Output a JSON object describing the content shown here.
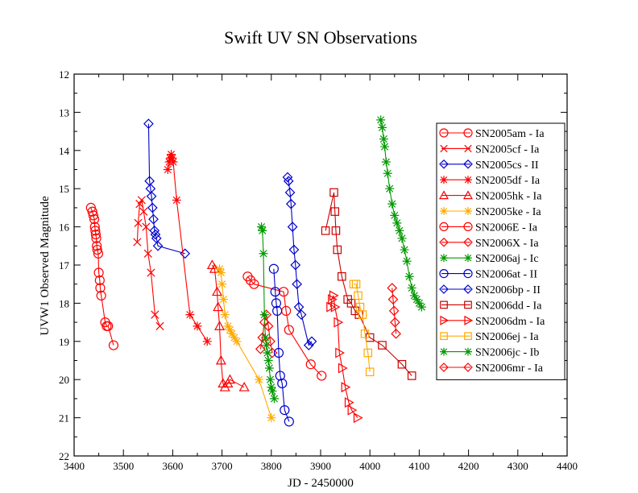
{
  "chart_data": {
    "type": "scatter",
    "title": "Swift UV SN Observations",
    "xlabel": "JD - 2450000",
    "ylabel": "UVW1 Observed Magnitude",
    "xlim": [
      3400,
      4400
    ],
    "ylim": [
      12,
      22
    ],
    "y_inverted": true,
    "xticks": [
      3400,
      3500,
      3600,
      3700,
      3800,
      3900,
      4000,
      4100,
      4200,
      4300,
      4400
    ],
    "yticks": [
      12,
      13,
      14,
      15,
      16,
      17,
      18,
      19,
      20,
      21,
      22
    ],
    "grid": false,
    "legend_position": "right",
    "series": [
      {
        "name": "SN2005am - Ia",
        "color": "#ff0000",
        "marker": "circle",
        "x": [
          3434,
          3437,
          3439,
          3441,
          3442,
          3443,
          3444,
          3445,
          3446,
          3447,
          3449,
          3450,
          3452,
          3453,
          3455,
          3463,
          3466,
          3469,
          3480
        ],
        "y": [
          15.5,
          15.6,
          15.7,
          15.8,
          16.0,
          16.1,
          16.2,
          16.3,
          16.5,
          16.6,
          16.7,
          17.2,
          17.4,
          17.6,
          17.8,
          18.5,
          18.6,
          18.6,
          19.1
        ]
      },
      {
        "name": "SN2005cf - Ia",
        "color": "#ff0000",
        "marker": "x",
        "x": [
          3528,
          3530,
          3533,
          3537,
          3541,
          3546,
          3550,
          3556,
          3564,
          3574
        ],
        "y": [
          16.4,
          15.9,
          15.4,
          15.3,
          15.6,
          16.0,
          16.7,
          17.2,
          18.3,
          18.6
        ]
      },
      {
        "name": "SN2005cs - II",
        "color": "#0000cc",
        "marker": "diamond",
        "x": [
          3551,
          3553,
          3555,
          3557,
          3559,
          3561,
          3563,
          3565,
          3567,
          3570,
          3625
        ],
        "y": [
          13.3,
          14.8,
          15.0,
          15.2,
          15.5,
          15.8,
          16.1,
          16.2,
          16.3,
          16.5,
          16.7
        ]
      },
      {
        "name": "SN2005df - Ia",
        "color": "#ff0000",
        "marker": "asterisk",
        "x": [
          3590,
          3593,
          3595,
          3597,
          3599,
          3601,
          3608,
          3635,
          3650,
          3670
        ],
        "y": [
          14.5,
          14.3,
          14.2,
          14.1,
          14.2,
          14.3,
          15.3,
          18.3,
          18.6,
          19.0
        ]
      },
      {
        "name": "SN2005hk - Ia",
        "color": "#ff0000",
        "marker": "triangle-up",
        "x": [
          3680,
          3685,
          3690,
          3692,
          3695,
          3698,
          3702,
          3706,
          3712,
          3716,
          3745
        ],
        "y": [
          17.0,
          17.1,
          17.7,
          18.1,
          18.6,
          19.5,
          20.1,
          20.2,
          20.1,
          20.0,
          20.2
        ]
      },
      {
        "name": "SN2005ke - Ia",
        "color": "#ffaa00",
        "marker": "asterisk",
        "x": [
          3695,
          3698,
          3700,
          3703,
          3706,
          3712,
          3716,
          3720,
          3725,
          3730,
          3775,
          3800
        ],
        "y": [
          17.1,
          17.2,
          17.5,
          17.9,
          18.3,
          18.6,
          18.7,
          18.8,
          18.9,
          19.0,
          20.0,
          21.0
        ]
      },
      {
        "name": "SN2006E - Ia",
        "color": "#ff0000",
        "marker": "circle",
        "x": [
          3752,
          3758,
          3765,
          3825,
          3830,
          3836,
          3880,
          3902
        ],
        "y": [
          17.3,
          17.4,
          17.5,
          17.7,
          18.2,
          18.7,
          19.6,
          19.9
        ]
      },
      {
        "name": "SN2006X - Ia",
        "color": "#ff0000",
        "marker": "diamond",
        "x": [
          3778,
          3782,
          3786,
          3790,
          3794,
          3798,
          3802
        ],
        "y": [
          19.2,
          18.9,
          18.5,
          18.3,
          18.6,
          19.0,
          19.3
        ]
      },
      {
        "name": "SN2006aj - Ic",
        "color": "#009900",
        "marker": "asterisk",
        "x": [
          3780,
          3782,
          3784,
          3786,
          3788,
          3790,
          3792,
          3794,
          3796,
          3798,
          3800,
          3802,
          3806
        ],
        "y": [
          16.0,
          16.1,
          16.7,
          18.3,
          18.9,
          19.1,
          19.3,
          19.5,
          19.7,
          20.0,
          20.2,
          20.3,
          20.5
        ]
      },
      {
        "name": "SN2006at - II",
        "color": "#0000cc",
        "marker": "circle",
        "x": [
          3805,
          3808,
          3810,
          3812,
          3815,
          3818,
          3822,
          3827,
          3836
        ],
        "y": [
          17.1,
          17.7,
          18.0,
          18.2,
          19.3,
          19.9,
          20.1,
          20.8,
          21.1
        ]
      },
      {
        "name": "SN2006bp - II",
        "color": "#0000cc",
        "marker": "diamond",
        "x": [
          3833,
          3835,
          3838,
          3840,
          3843,
          3846,
          3849,
          3852,
          3856,
          3861,
          3876,
          3882
        ],
        "y": [
          14.7,
          14.8,
          15.1,
          15.4,
          16.0,
          16.6,
          17.0,
          17.5,
          18.1,
          18.3,
          19.1,
          19.0
        ]
      },
      {
        "name": "SN2006dd - Ia",
        "color": "#cc0000",
        "marker": "square",
        "x": [
          3910,
          3927,
          3929,
          3931,
          3934,
          3943,
          3955,
          3962,
          3970,
          3978,
          4000,
          4025,
          4065,
          4085
        ],
        "y": [
          16.1,
          15.1,
          15.6,
          16.1,
          16.6,
          17.3,
          17.9,
          18.0,
          18.2,
          18.3,
          18.9,
          19.1,
          19.6,
          19.9
        ]
      },
      {
        "name": "SN2006dm - Ia",
        "color": "#ff0000",
        "marker": "triangle-right",
        "x": [
          3920,
          3923,
          3926,
          3929,
          3935,
          3938,
          3944,
          3950,
          3957,
          3963,
          3975
        ],
        "y": [
          18.1,
          17.9,
          17.8,
          18.1,
          18.5,
          19.3,
          19.7,
          20.2,
          20.6,
          20.8,
          21.0
        ]
      },
      {
        "name": "SN2006ej - Ia",
        "color": "#ffaa00",
        "marker": "square",
        "x": [
          3967,
          3972,
          3976,
          3980,
          3985,
          3990,
          3996,
          4000
        ],
        "y": [
          17.5,
          17.5,
          17.8,
          18.1,
          18.3,
          18.8,
          19.3,
          19.8
        ]
      },
      {
        "name": "SN2006jc - Ib",
        "color": "#009900",
        "marker": "asterisk",
        "x": [
          4022,
          4025,
          4028,
          4030,
          4033,
          4036,
          4040,
          4045,
          4050,
          4055,
          4060,
          4065,
          4070,
          4075,
          4080,
          4085,
          4090,
          4095,
          4100,
          4105
        ],
        "y": [
          13.2,
          13.4,
          13.7,
          13.9,
          14.3,
          14.6,
          15.0,
          15.4,
          15.7,
          15.9,
          16.1,
          16.3,
          16.6,
          16.9,
          17.3,
          17.6,
          17.8,
          17.9,
          18.0,
          18.1
        ]
      },
      {
        "name": "SN2006mr - Ia",
        "color": "#ff0000",
        "marker": "diamond",
        "x": [
          4045,
          4047,
          4049,
          4051,
          4053
        ],
        "y": [
          17.6,
          17.9,
          18.2,
          18.5,
          18.8
        ]
      }
    ]
  }
}
